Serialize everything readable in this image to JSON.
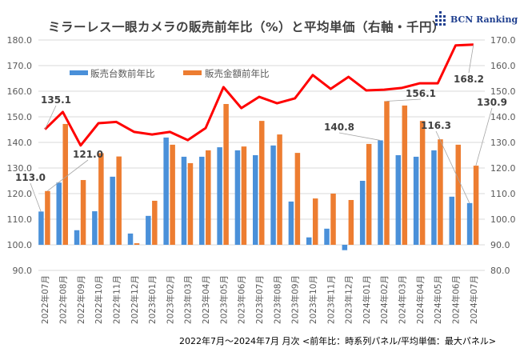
{
  "chart_data": {
    "type": "bar+line",
    "title": "ミラーレス一眼カメラの販売前年比（%）と平均単価（右軸・千円）",
    "subtitle": "2022年7月〜2024年7月 月次 <前年比：時系列パネル/平均単価：最大パネル>",
    "logo": "BCN Ranking",
    "categories": [
      "2022年07月",
      "2022年08月",
      "2022年09月",
      "2022年10月",
      "2022年11月",
      "2022年12月",
      "2023年01月",
      "2023年02月",
      "2023年03月",
      "2023年04月",
      "2023年05月",
      "2023年06月",
      "2023年07月",
      "2023年08月",
      "2023年09月",
      "2023年10月",
      "2023年11月",
      "2023年12月",
      "2024年01月",
      "2024年02月",
      "2024年03月",
      "2024年04月",
      "2024年05月",
      "2024年06月",
      "2024年07月"
    ],
    "left_axis": {
      "ylim": [
        90,
        180
      ],
      "ticks": [
        "90.0",
        "100.0",
        "110.0",
        "120.0",
        "130.0",
        "140.0",
        "150.0",
        "160.0",
        "170.0",
        "180.0"
      ],
      "baseline": 100
    },
    "right_axis": {
      "ylim": [
        80,
        170
      ],
      "ticks": [
        "80.0",
        "90.0",
        "100.0",
        "110.0",
        "120.0",
        "130.0",
        "140.0",
        "150.0",
        "160.0",
        "170.0"
      ]
    },
    "grid": true,
    "legend_position": "top-left",
    "series": [
      {
        "name": "販売台数前年比",
        "type": "bar",
        "axis": "left",
        "color": "#4a90d9",
        "values": [
          113.0,
          124.3,
          105.7,
          113.1,
          126.6,
          104.4,
          111.3,
          141.9,
          134.4,
          134.4,
          138.1,
          136.9,
          135.0,
          138.8,
          116.9,
          102.9,
          106.3,
          97.9,
          125.0,
          140.8,
          135.0,
          134.4,
          136.9,
          118.8,
          116.3
        ]
      },
      {
        "type": "bar",
        "name": "販売金額前年比",
        "axis": "left",
        "color": "#ed7d31",
        "values": [
          121.0,
          147.2,
          125.3,
          135.8,
          134.5,
          100.6,
          117.2,
          139.1,
          131.9,
          136.9,
          155.0,
          138.4,
          148.4,
          143.1,
          135.9,
          118.1,
          120.0,
          117.5,
          139.4,
          156.1,
          154.4,
          148.4,
          141.2,
          139.1,
          130.9
        ]
      },
      {
        "type": "line",
        "axis": "right",
        "color": "#ff0000",
        "values": [
          135.1,
          141.9,
          128.8,
          137.5,
          138.0,
          134.1,
          133.1,
          134.1,
          130.9,
          135.6,
          151.6,
          143.4,
          147.8,
          145.3,
          147.2,
          156.3,
          150.9,
          155.6,
          150.3,
          150.6,
          151.3,
          153.1,
          153.1,
          167.9,
          168.2
        ]
      }
    ],
    "data_labels": [
      {
        "series": 2,
        "index": 0,
        "text": "135.1"
      },
      {
        "series": 2,
        "index": 24,
        "text": "168.2"
      },
      {
        "series": 0,
        "index": 0,
        "text": "113.0"
      },
      {
        "series": 1,
        "index": 0,
        "text": "121.0"
      },
      {
        "series": 0,
        "index": 19,
        "text": "140.8"
      },
      {
        "series": 1,
        "index": 19,
        "text": "156.1"
      },
      {
        "series": 0,
        "index": 24,
        "text": "116.3"
      },
      {
        "series": 1,
        "index": 24,
        "text": "130.9"
      }
    ]
  }
}
